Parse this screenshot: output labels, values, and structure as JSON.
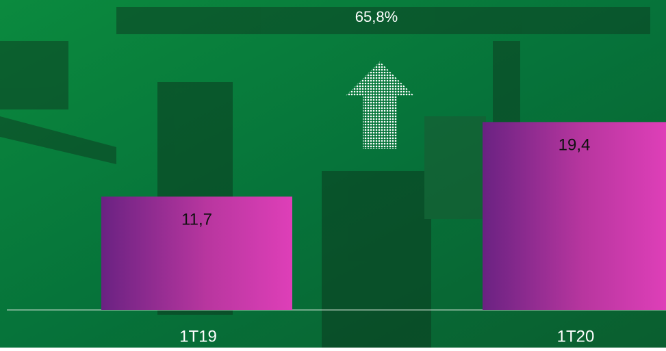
{
  "chart_data": {
    "type": "bar",
    "annotation": "65,8%",
    "categories": [
      "1T19",
      "1T20"
    ],
    "values": [
      11.7,
      19.4
    ],
    "value_labels": [
      "11,7",
      "19,4"
    ],
    "color": "#d63fb6",
    "ylim": [
      0,
      32
    ]
  }
}
